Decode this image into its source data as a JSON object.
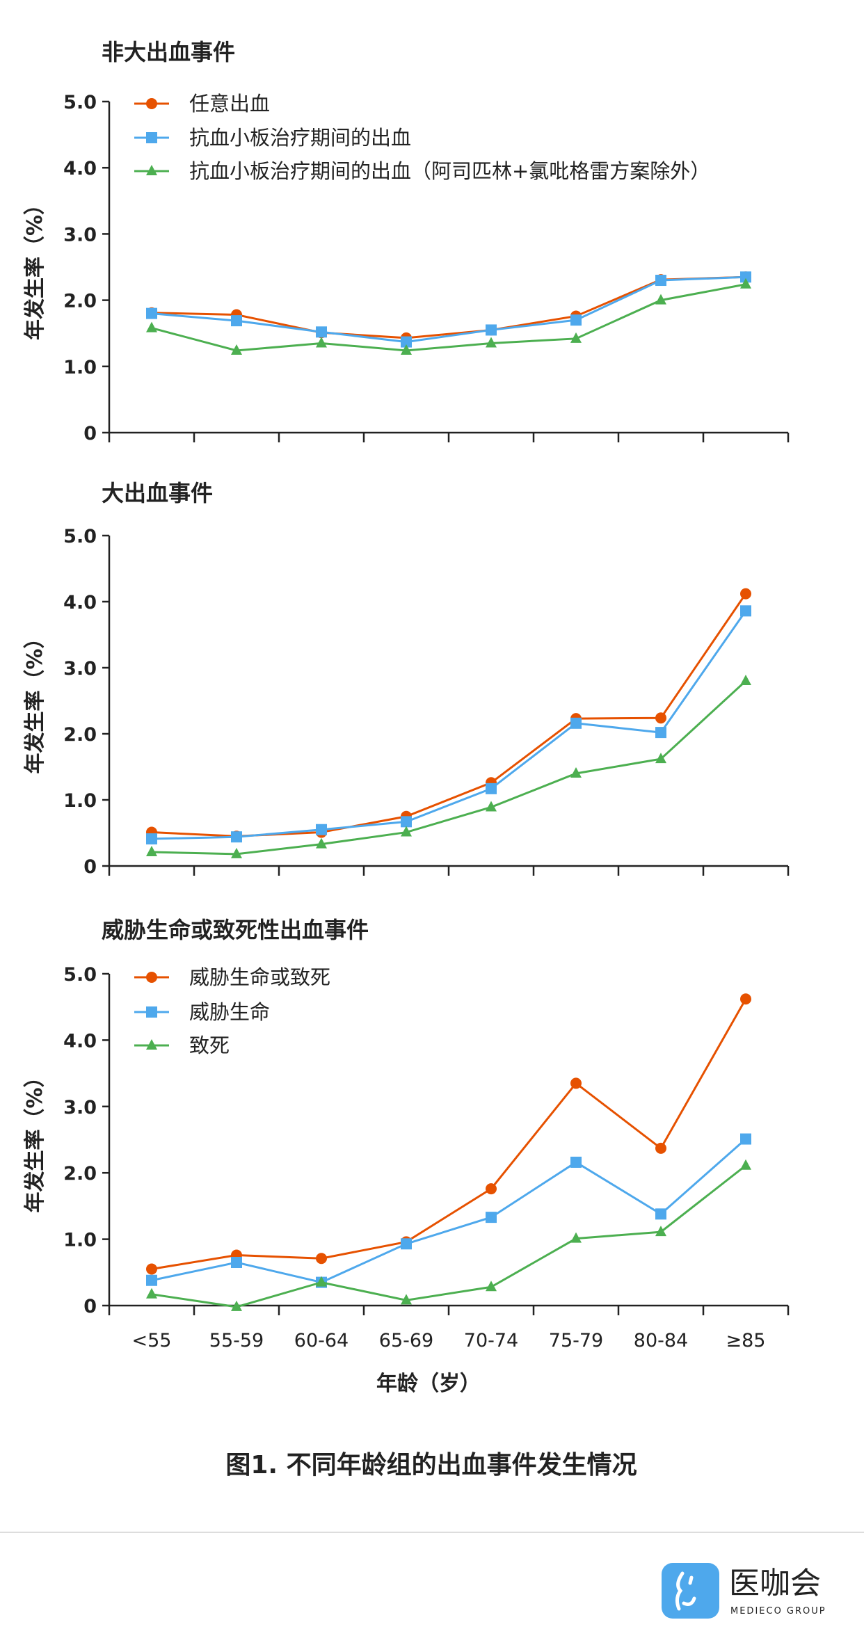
{
  "colors": {
    "orange": "#E65100",
    "blue": "#4EA8EC",
    "green": "#4CAF50",
    "axis": "#222222"
  },
  "chart_data": [
    {
      "type": "line",
      "title": "非大出血事件",
      "ylabel": "年发生率（%）",
      "xlabel": "",
      "ylim": [
        0,
        5
      ],
      "yticks": [
        "0",
        "1.0",
        "2.0",
        "3.0",
        "4.0",
        "5.0"
      ],
      "categories": [
        "<55",
        "55-59",
        "60-64",
        "65-69",
        "70-74",
        "75-79",
        "80-84",
        "≥85"
      ],
      "legend_position": "top-left",
      "series": [
        {
          "name": "任意出血",
          "marker": "circle",
          "color": "orange",
          "values": [
            1.81,
            1.78,
            1.51,
            1.43,
            1.55,
            1.76,
            2.31,
            2.35
          ]
        },
        {
          "name": "抗血小板治疗期间的出血",
          "marker": "square",
          "color": "blue",
          "values": [
            1.8,
            1.69,
            1.52,
            1.37,
            1.55,
            1.7,
            2.3,
            2.35
          ]
        },
        {
          "name": "抗血小板治疗期间的出血（阿司匹林+氯吡格雷方案除外）",
          "marker": "triangle",
          "color": "green",
          "values": [
            1.58,
            1.24,
            1.35,
            1.24,
            1.35,
            1.42,
            2.0,
            2.24
          ]
        }
      ]
    },
    {
      "type": "line",
      "title": "大出血事件",
      "ylabel": "年发生率（%）",
      "xlabel": "",
      "ylim": [
        0,
        5
      ],
      "yticks": [
        "0",
        "1.0",
        "2.0",
        "3.0",
        "4.0",
        "5.0"
      ],
      "categories": [
        "<55",
        "55-59",
        "60-64",
        "65-69",
        "70-74",
        "75-79",
        "80-84",
        "≥85"
      ],
      "series": [
        {
          "name": "任意出血",
          "marker": "circle",
          "color": "orange",
          "values": [
            0.51,
            0.45,
            0.51,
            0.75,
            1.26,
            2.23,
            2.24,
            4.12
          ]
        },
        {
          "name": "抗血小板治疗期间的出血",
          "marker": "square",
          "color": "blue",
          "values": [
            0.41,
            0.44,
            0.55,
            0.67,
            1.17,
            2.16,
            2.02,
            3.86
          ]
        },
        {
          "name": "抗血小板治疗期间的出血（阿司匹林+氯吡格雷方案除外）",
          "marker": "triangle",
          "color": "green",
          "values": [
            0.21,
            0.18,
            0.33,
            0.51,
            0.89,
            1.4,
            1.62,
            2.8
          ]
        }
      ]
    },
    {
      "type": "line",
      "title": "威胁生命或致死性出血事件",
      "ylabel": "年发生率（%）",
      "xlabel": "年龄（岁）",
      "ylim": [
        0,
        5
      ],
      "yticks": [
        "0",
        "1.0",
        "2.0",
        "3.0",
        "4.0",
        "5.0"
      ],
      "categories": [
        "<55",
        "55-59",
        "60-64",
        "65-69",
        "70-74",
        "75-79",
        "80-84",
        "≥85"
      ],
      "legend_position": "top-left",
      "series": [
        {
          "name": "威胁生命或致死",
          "marker": "circle",
          "color": "orange",
          "values": [
            0.55,
            0.76,
            0.71,
            0.96,
            1.76,
            3.35,
            2.37,
            4.62
          ]
        },
        {
          "name": "威胁生命",
          "marker": "square",
          "color": "blue",
          "values": [
            0.38,
            0.65,
            0.35,
            0.93,
            1.33,
            2.16,
            1.38,
            2.51
          ]
        },
        {
          "name": "致死",
          "marker": "triangle",
          "color": "green",
          "values": [
            0.17,
            -0.02,
            0.35,
            0.08,
            0.28,
            1.01,
            1.11,
            2.11
          ]
        }
      ]
    }
  ],
  "caption": "图1. 不同年龄组的出血事件发生情况",
  "logo": {
    "name_cn": "医咖会",
    "name_en": "MEDIECO  GROUP"
  }
}
